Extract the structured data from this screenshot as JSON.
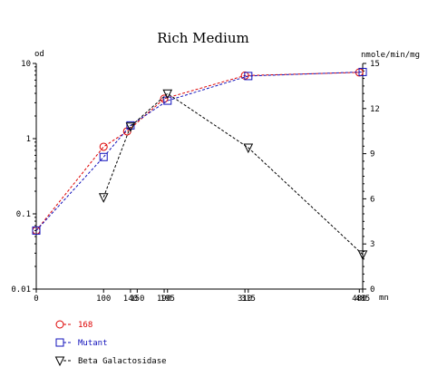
{
  "chart_data": {
    "type": "line",
    "title": "Rich Medium",
    "ylabel_left": "od",
    "ylabel_right": "nmole/min/mg",
    "xlabel": "mn",
    "y_left_scale": "log",
    "ylim_left": [
      0.01,
      10
    ],
    "ylim_right": [
      0,
      15
    ],
    "xlim": [
      0,
      485
    ],
    "grid": false,
    "legend_position": "bottom-left",
    "x_ticks": [
      "0",
      "100",
      "140",
      "150",
      "190",
      "195",
      "310",
      "315",
      "480",
      "485"
    ],
    "y_left_ticks": [
      "0.01",
      "0.1",
      "1",
      "10"
    ],
    "y_right_ticks": [
      "0",
      "3",
      "6",
      "9",
      "12",
      "15"
    ],
    "series": [
      {
        "name": "168",
        "axis": "left",
        "color": "#dd0000",
        "marker": "circle",
        "x": [
          0,
          100,
          135,
          190,
          310,
          480
        ],
        "y": [
          0.06,
          0.78,
          1.25,
          3.4,
          6.9,
          7.6
        ]
      },
      {
        "name": "Mutant",
        "axis": "left",
        "color": "#1010bb",
        "marker": "square",
        "x": [
          0,
          100,
          140,
          195,
          315,
          485
        ],
        "y": [
          0.06,
          0.57,
          1.5,
          3.2,
          6.8,
          7.7
        ]
      },
      {
        "name": "Beta Galactosidase",
        "axis": "right",
        "color": "#000000",
        "marker": "triangle-down",
        "x": [
          100,
          140,
          195,
          315,
          485
        ],
        "y": [
          6.1,
          10.8,
          13.0,
          9.4,
          2.3
        ]
      }
    ]
  }
}
